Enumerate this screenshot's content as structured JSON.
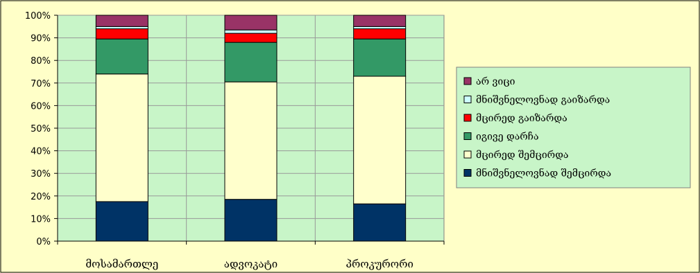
{
  "chart_data": {
    "type": "bar",
    "stacked": true,
    "percent": true,
    "categories": [
      "მოსამართლე",
      "ადვოკატი",
      "პროკურორი"
    ],
    "yticks": [
      "0%",
      "10%",
      "20%",
      "30%",
      "40%",
      "50%",
      "60%",
      "70%",
      "80%",
      "90%",
      "100%"
    ],
    "ylim": [
      0,
      100
    ],
    "grid": true,
    "legend_position": "right",
    "series": [
      {
        "name": "მნიშვნელოვნად შემცირდა",
        "color": "#003366",
        "values": [
          17.5,
          18.5,
          16.5
        ]
      },
      {
        "name": "მცირედ შემცირდა",
        "color": "#ffffcc",
        "values": [
          56.5,
          52.0,
          56.5
        ]
      },
      {
        "name": "იგივე დარჩა",
        "color": "#339966",
        "values": [
          15.5,
          17.5,
          16.5
        ]
      },
      {
        "name": "მცირედ გაიზარდა",
        "color": "#ff0000",
        "values": [
          4.5,
          4.0,
          4.5
        ]
      },
      {
        "name": "მნიშვნელოვნად გაიზარდა",
        "color": "#ccffff",
        "values": [
          1.0,
          1.5,
          1.0
        ]
      },
      {
        "name": "არ ვიცი",
        "color": "#993366",
        "values": [
          5.0,
          6.5,
          5.0
        ]
      }
    ],
    "legend_order": [
      5,
      4,
      3,
      2,
      1,
      0
    ]
  },
  "colors": {
    "page_background": "#ffffc8",
    "plot_background": "#c8f5c8",
    "grid": "#999999",
    "bar_outline": "#000000"
  }
}
